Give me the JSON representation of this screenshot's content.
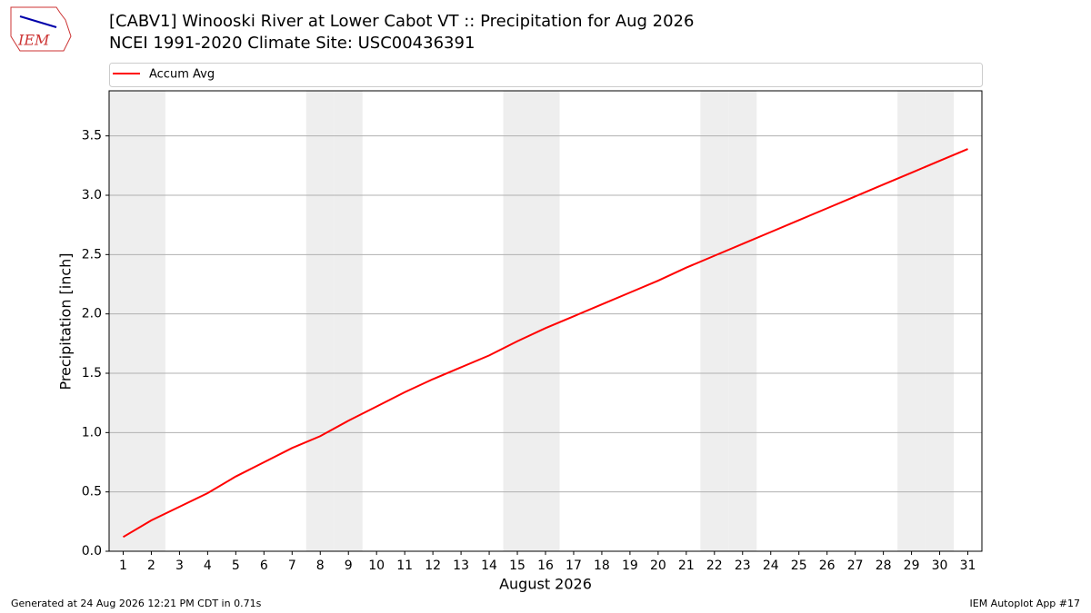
{
  "chart_data": {
    "type": "line",
    "title": "[CABV1] Winooski River at Lower Cabot  VT :: Precipitation for Aug 2026",
    "subtitle": "NCEI 1991-2020 Climate Site: USC00436391",
    "xlabel": "August 2026",
    "ylabel": "Precipitation [inch]",
    "logo_text": "IEM",
    "footer_left": "Generated at 24 Aug 2026 12:21 PM CDT in 0.71s",
    "footer_right": "IEM Autoplot App #17",
    "x": [
      1,
      2,
      3,
      4,
      5,
      6,
      7,
      8,
      9,
      10,
      11,
      12,
      13,
      14,
      15,
      16,
      17,
      18,
      19,
      20,
      21,
      22,
      23,
      24,
      25,
      26,
      27,
      28,
      29,
      30,
      31
    ],
    "series": [
      {
        "name": "Accum Avg",
        "color": "#ff0000",
        "values": [
          0.12,
          0.26,
          0.375,
          0.49,
          0.63,
          0.75,
          0.87,
          0.97,
          1.1,
          1.22,
          1.34,
          1.45,
          1.55,
          1.65,
          1.77,
          1.88,
          1.98,
          2.08,
          2.18,
          2.28,
          2.39,
          2.49,
          2.59,
          2.69,
          2.79,
          2.89,
          2.99,
          3.09,
          3.19,
          3.29,
          3.39
        ]
      }
    ],
    "shaded_days": [
      1,
      2,
      8,
      9,
      15,
      16,
      22,
      23,
      29,
      30
    ],
    "shade_color": "#eeeeee",
    "xlim": [
      0.5,
      31.5
    ],
    "xticks": [
      1,
      2,
      3,
      4,
      5,
      6,
      7,
      8,
      9,
      10,
      11,
      12,
      13,
      14,
      15,
      16,
      17,
      18,
      19,
      20,
      21,
      22,
      23,
      24,
      25,
      26,
      27,
      28,
      29,
      30,
      31
    ],
    "ylim": [
      0,
      3.88
    ],
    "yticks": [
      {
        "value": 0,
        "label": "0.0"
      },
      0.5,
      {
        "value": 1,
        "label": "1.0"
      },
      1.5,
      {
        "value": 2,
        "label": "2.0"
      },
      2.5,
      {
        "value": 3,
        "label": "3.0"
      },
      3.5
    ],
    "grid": true,
    "legend": "top"
  }
}
